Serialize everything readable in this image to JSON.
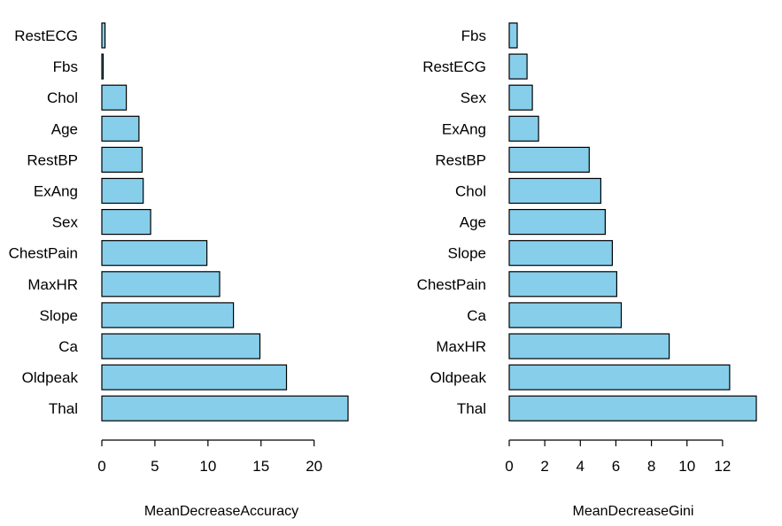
{
  "chart_data": [
    {
      "type": "bar",
      "orientation": "horizontal",
      "categories": [
        "RestECG",
        "Fbs",
        "Chol",
        "Age",
        "RestBP",
        "ExAng",
        "Sex",
        "ChestPain",
        "MaxHR",
        "Slope",
        "Ca",
        "Oldpeak",
        "Thal"
      ],
      "values": [
        0.3,
        0.1,
        2.3,
        3.5,
        3.8,
        3.9,
        4.6,
        9.9,
        11.1,
        12.4,
        14.9,
        17.4,
        23.2
      ],
      "xlabel": "MeanDecreaseAccuracy",
      "xticks": [
        0,
        5,
        10,
        15,
        20
      ],
      "xlim": [
        0,
        23.2
      ],
      "bar_color": "#87CEEB",
      "grid": false
    },
    {
      "type": "bar",
      "orientation": "horizontal",
      "categories": [
        "Fbs",
        "RestECG",
        "Sex",
        "ExAng",
        "RestBP",
        "Chol",
        "Age",
        "Slope",
        "ChestPain",
        "Ca",
        "MaxHR",
        "Oldpeak",
        "Thal"
      ],
      "values": [
        0.45,
        1.0,
        1.3,
        1.65,
        4.5,
        5.15,
        5.4,
        5.8,
        6.05,
        6.3,
        9.0,
        12.4,
        13.9
      ],
      "xlabel": "MeanDecreaseGini",
      "xticks": [
        0,
        2,
        4,
        6,
        8,
        10,
        12
      ],
      "xlim": [
        0,
        13.9
      ],
      "bar_color": "#87CEEB",
      "grid": false
    }
  ]
}
